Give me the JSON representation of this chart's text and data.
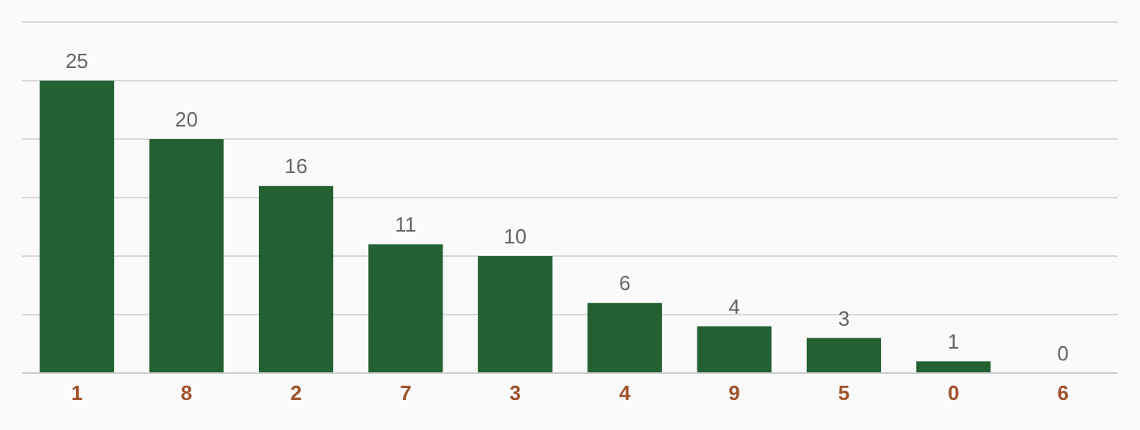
{
  "chart_data": {
    "type": "bar",
    "categories": [
      "1",
      "8",
      "2",
      "7",
      "3",
      "4",
      "9",
      "5",
      "0",
      "6"
    ],
    "values": [
      25,
      20,
      16,
      11,
      10,
      6,
      4,
      3,
      1,
      0
    ],
    "color": "#236133",
    "ylim": [
      0,
      30
    ],
    "yticks": [
      {
        "value": 0,
        "label": null
      },
      {
        "value": 5,
        "label": null
      },
      {
        "value": 10,
        "label": null
      },
      {
        "value": 15,
        "label": null
      },
      {
        "value": 20,
        "label": null
      },
      {
        "value": 25,
        "label": null
      },
      {
        "value": 30,
        "label": null
      }
    ],
    "grid": "y",
    "tick_labels": "x",
    "data_labels": true
  }
}
